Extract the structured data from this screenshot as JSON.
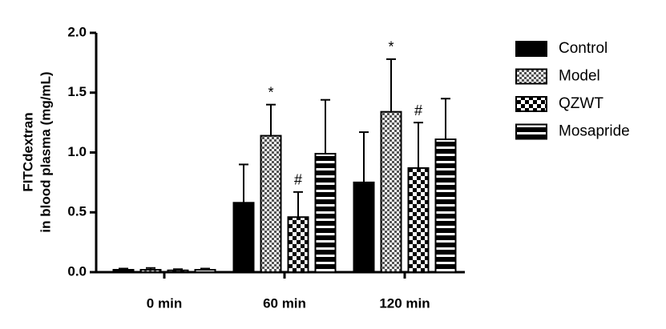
{
  "chart_data": {
    "type": "bar",
    "ylabel": [
      "FITCdextran",
      "in blood plasma (mg/mL)"
    ],
    "categories": [
      "0 min",
      "60 min",
      "120 min"
    ],
    "series": [
      {
        "name": "Control",
        "color": "#000000",
        "pattern": "solid",
        "values": [
          0.02,
          0.58,
          0.75
        ],
        "errors": [
          0.01,
          0.32,
          0.42
        ],
        "annotations": [
          null,
          null,
          null
        ]
      },
      {
        "name": "Model",
        "color": "#000000",
        "pattern": "checker-fine",
        "values": [
          0.02,
          1.14,
          1.34
        ],
        "errors": [
          0.015,
          0.26,
          0.44
        ],
        "annotations": [
          null,
          "*",
          "*"
        ]
      },
      {
        "name": "QZWT",
        "color": "#000000",
        "pattern": "checker",
        "values": [
          0.015,
          0.46,
          0.87
        ],
        "errors": [
          0.01,
          0.21,
          0.38
        ],
        "annotations": [
          null,
          "#",
          "#"
        ]
      },
      {
        "name": "Mosapride",
        "color": "#000000",
        "pattern": "hstripes",
        "values": [
          0.02,
          0.99,
          1.11
        ],
        "errors": [
          0.01,
          0.45,
          0.34
        ],
        "annotations": [
          null,
          null,
          null
        ]
      }
    ],
    "ylim": [
      0,
      2.0
    ],
    "yticks": [
      {
        "value": 0,
        "label": "0.0"
      },
      {
        "value": 0.5,
        "label": "0.5"
      },
      {
        "value": 1,
        "label": "1.0"
      },
      {
        "value": 1.5,
        "label": "1.5"
      },
      {
        "value": 2,
        "label": "2.0"
      }
    ],
    "legend": "right"
  }
}
